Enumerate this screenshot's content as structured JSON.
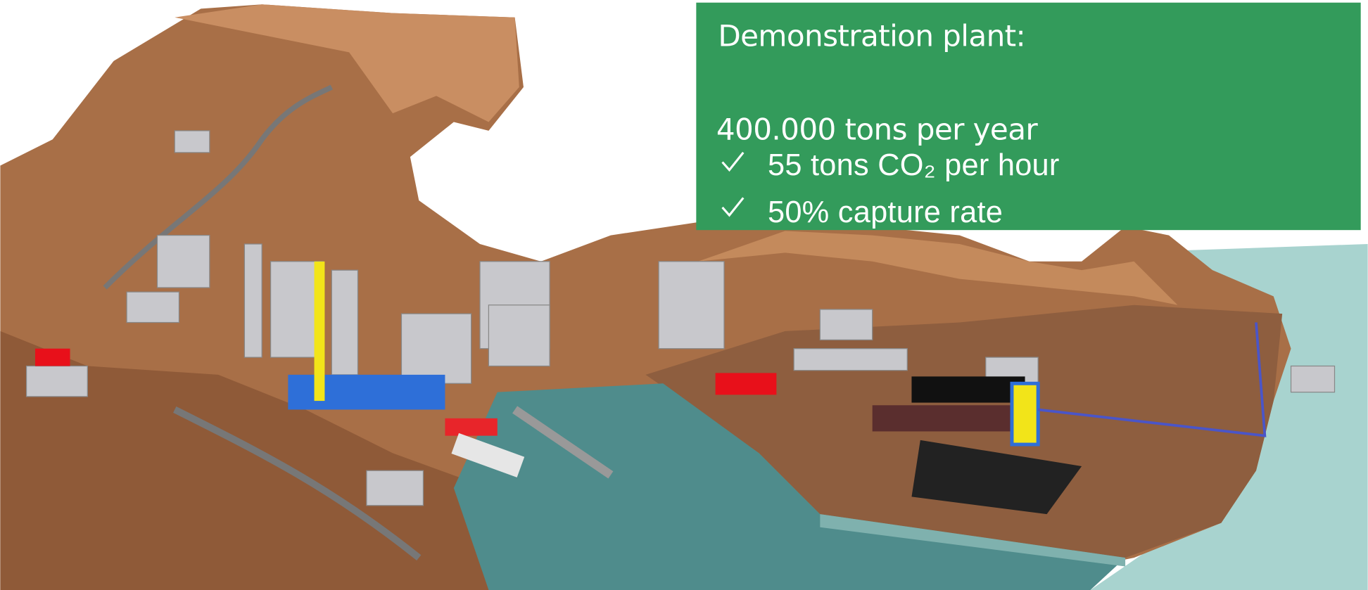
{
  "slide": {
    "title": "Demonstration plant:",
    "headline": "400.000 tons per year",
    "items": [
      "55 tons CO₂ per hour",
      "50% capture rate"
    ]
  }
}
